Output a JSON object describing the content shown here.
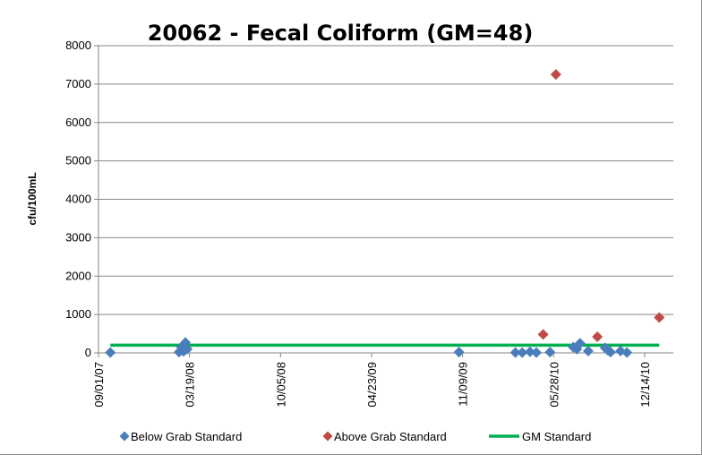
{
  "chart_data": {
    "type": "scatter",
    "title": "20062 - Fecal Coliform (GM=48)",
    "xlabel": "",
    "ylabel": "cfu/100mL",
    "ylim": [
      0,
      8000
    ],
    "yticks": [
      0,
      1000,
      2000,
      3000,
      4000,
      5000,
      6000,
      7000,
      8000
    ],
    "xlim": [
      "2007-09-01",
      "2011-02-15"
    ],
    "xticks": [
      "09/01/07",
      "03/19/08",
      "10/05/08",
      "04/23/09",
      "11/09/09",
      "05/28/10",
      "12/14/10"
    ],
    "grid": "horizontal",
    "legend_position": "bottom",
    "series": [
      {
        "name": "Below Grab Standard",
        "color": "#4a7ebb",
        "marker": "diamond",
        "points": [
          {
            "x": "2007-09-27",
            "y": 10
          },
          {
            "x": "2008-02-25",
            "y": 20
          },
          {
            "x": "2008-03-01",
            "y": 150
          },
          {
            "x": "2008-03-06",
            "y": 40
          },
          {
            "x": "2008-03-10",
            "y": 270
          },
          {
            "x": "2008-03-14",
            "y": 100
          },
          {
            "x": "2009-11-01",
            "y": 20
          },
          {
            "x": "2010-03-05",
            "y": 10
          },
          {
            "x": "2010-03-20",
            "y": 10
          },
          {
            "x": "2010-04-06",
            "y": 30
          },
          {
            "x": "2010-04-20",
            "y": 10
          },
          {
            "x": "2010-05-20",
            "y": 20
          },
          {
            "x": "2010-07-10",
            "y": 150
          },
          {
            "x": "2010-07-18",
            "y": 100
          },
          {
            "x": "2010-07-25",
            "y": 250
          },
          {
            "x": "2010-08-12",
            "y": 50
          },
          {
            "x": "2010-09-18",
            "y": 130
          },
          {
            "x": "2010-09-24",
            "y": 70
          },
          {
            "x": "2010-09-30",
            "y": 20
          },
          {
            "x": "2010-10-22",
            "y": 50
          },
          {
            "x": "2010-11-05",
            "y": 10
          }
        ]
      },
      {
        "name": "Above Grab Standard",
        "color": "#be4b48",
        "marker": "diamond",
        "points": [
          {
            "x": "2010-05-05",
            "y": 480
          },
          {
            "x": "2010-06-02",
            "y": 7250
          },
          {
            "x": "2010-09-01",
            "y": 420
          },
          {
            "x": "2011-01-15",
            "y": 920
          }
        ]
      },
      {
        "name": "GM Standard",
        "color": "#00b050",
        "marker": "line",
        "points": [
          {
            "x": "2007-09-27",
            "y": 200
          },
          {
            "x": "2011-01-15",
            "y": 200
          }
        ]
      }
    ]
  }
}
